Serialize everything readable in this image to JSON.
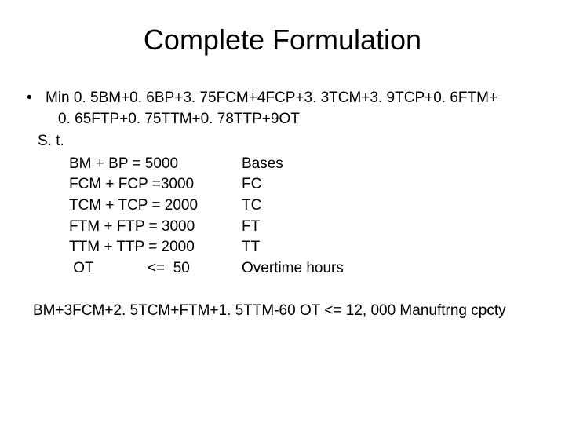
{
  "title": "Complete Formulation",
  "bullet": "•",
  "objective": {
    "line1": "Min 0. 5BM+0. 6BP+3. 75FCM+4FCP+3. 3TCM+3. 9TCP+0. 6FTM+",
    "line2": "0. 65FTP+0. 75TTM+0. 78TTP+9OT"
  },
  "st": "S. t.",
  "constraints": [
    {
      "left": "BM + BP = 5000",
      "right": "Bases"
    },
    {
      "left": "FCM + FCP =3000",
      "right": "FC"
    },
    {
      "left": "TCM + TCP = 2000",
      "right": " TC"
    },
    {
      "left": "FTM +  FTP = 3000",
      "right": "FT"
    },
    {
      "left": "TTM  + TTP = 2000",
      "right": " TT"
    },
    {
      "left": " OT             <=  50",
      "right": "Overtime hours"
    }
  ],
  "capacity": "BM+3FCM+2. 5TCM+FTM+1. 5TTM-60 OT <= 12, 000  Manuftrng cpcty"
}
